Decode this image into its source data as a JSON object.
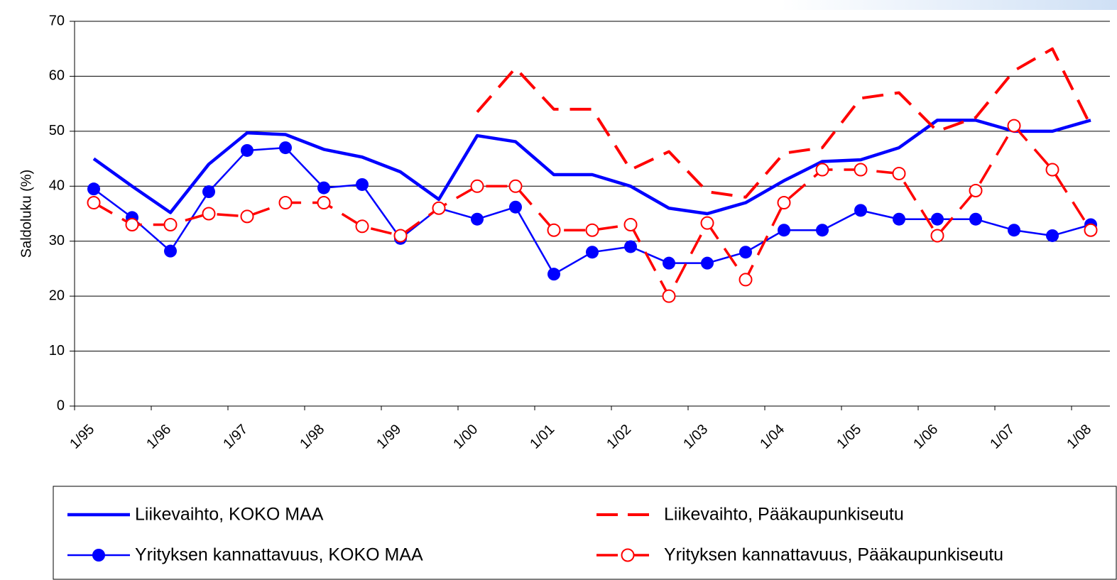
{
  "chart_data": {
    "type": "line",
    "y_label": "Saldoluku (%)",
    "categories": [
      "1/95",
      null,
      "1/96",
      null,
      "1/97",
      null,
      "1/98",
      null,
      "1/99",
      null,
      "1/00",
      null,
      "1/01",
      null,
      "1/02",
      null,
      "1/03",
      null,
      "1/04",
      null,
      "1/05",
      null,
      "1/06",
      null,
      "1/07",
      null,
      "1/08"
    ],
    "ylim": [
      0,
      70
    ],
    "yticks": [
      0,
      10,
      20,
      30,
      40,
      50,
      60,
      70
    ],
    "grid": true,
    "series": [
      {
        "name": "Liikevaihto, KOKO MAA",
        "color": "#0000ff",
        "line_style": "solid",
        "marker": "none",
        "values": [
          45,
          40,
          35.2,
          44,
          49.7,
          49.4,
          46.7,
          45.3,
          42.6,
          37.6,
          49.2,
          48.1,
          42.1,
          42.1,
          40,
          36,
          35,
          37,
          41,
          44.5,
          44.8,
          47,
          52,
          52,
          50,
          50,
          52
        ]
      },
      {
        "name": "Liikevaihto, Pääkaupunkiseutu",
        "color": "#ff0000",
        "line_style": "dashed",
        "marker": "none",
        "values": [
          null,
          null,
          null,
          null,
          null,
          null,
          null,
          null,
          null,
          null,
          53.5,
          61.5,
          54,
          54,
          43,
          46.3,
          39,
          38,
          46,
          47,
          56,
          57,
          50,
          52.5,
          61,
          65,
          51
        ]
      },
      {
        "name": "Yrityksen kannattavuus, KOKO MAA",
        "color": "#0000ff",
        "line_style": "solid",
        "marker": "filled-circle",
        "values": [
          39.5,
          34.3,
          28.2,
          39,
          46.5,
          47,
          39.7,
          40.3,
          30.5,
          36,
          34,
          36.2,
          24,
          28,
          29,
          26,
          26,
          28,
          32,
          32,
          35.6,
          34,
          34,
          34,
          32,
          31,
          33
        ]
      },
      {
        "name": "Yrityksen kannattavuus, Pääkaupunkiseutu",
        "color": "#ff0000",
        "line_style": "dashed",
        "marker": "open-circle",
        "values": [
          37,
          33,
          33,
          35,
          34.5,
          37,
          37,
          32.7,
          31,
          36,
          40,
          40,
          32,
          32,
          33,
          20,
          33.3,
          23,
          37,
          43,
          43,
          42.3,
          31,
          39.2,
          51,
          43,
          32
        ]
      }
    ]
  }
}
